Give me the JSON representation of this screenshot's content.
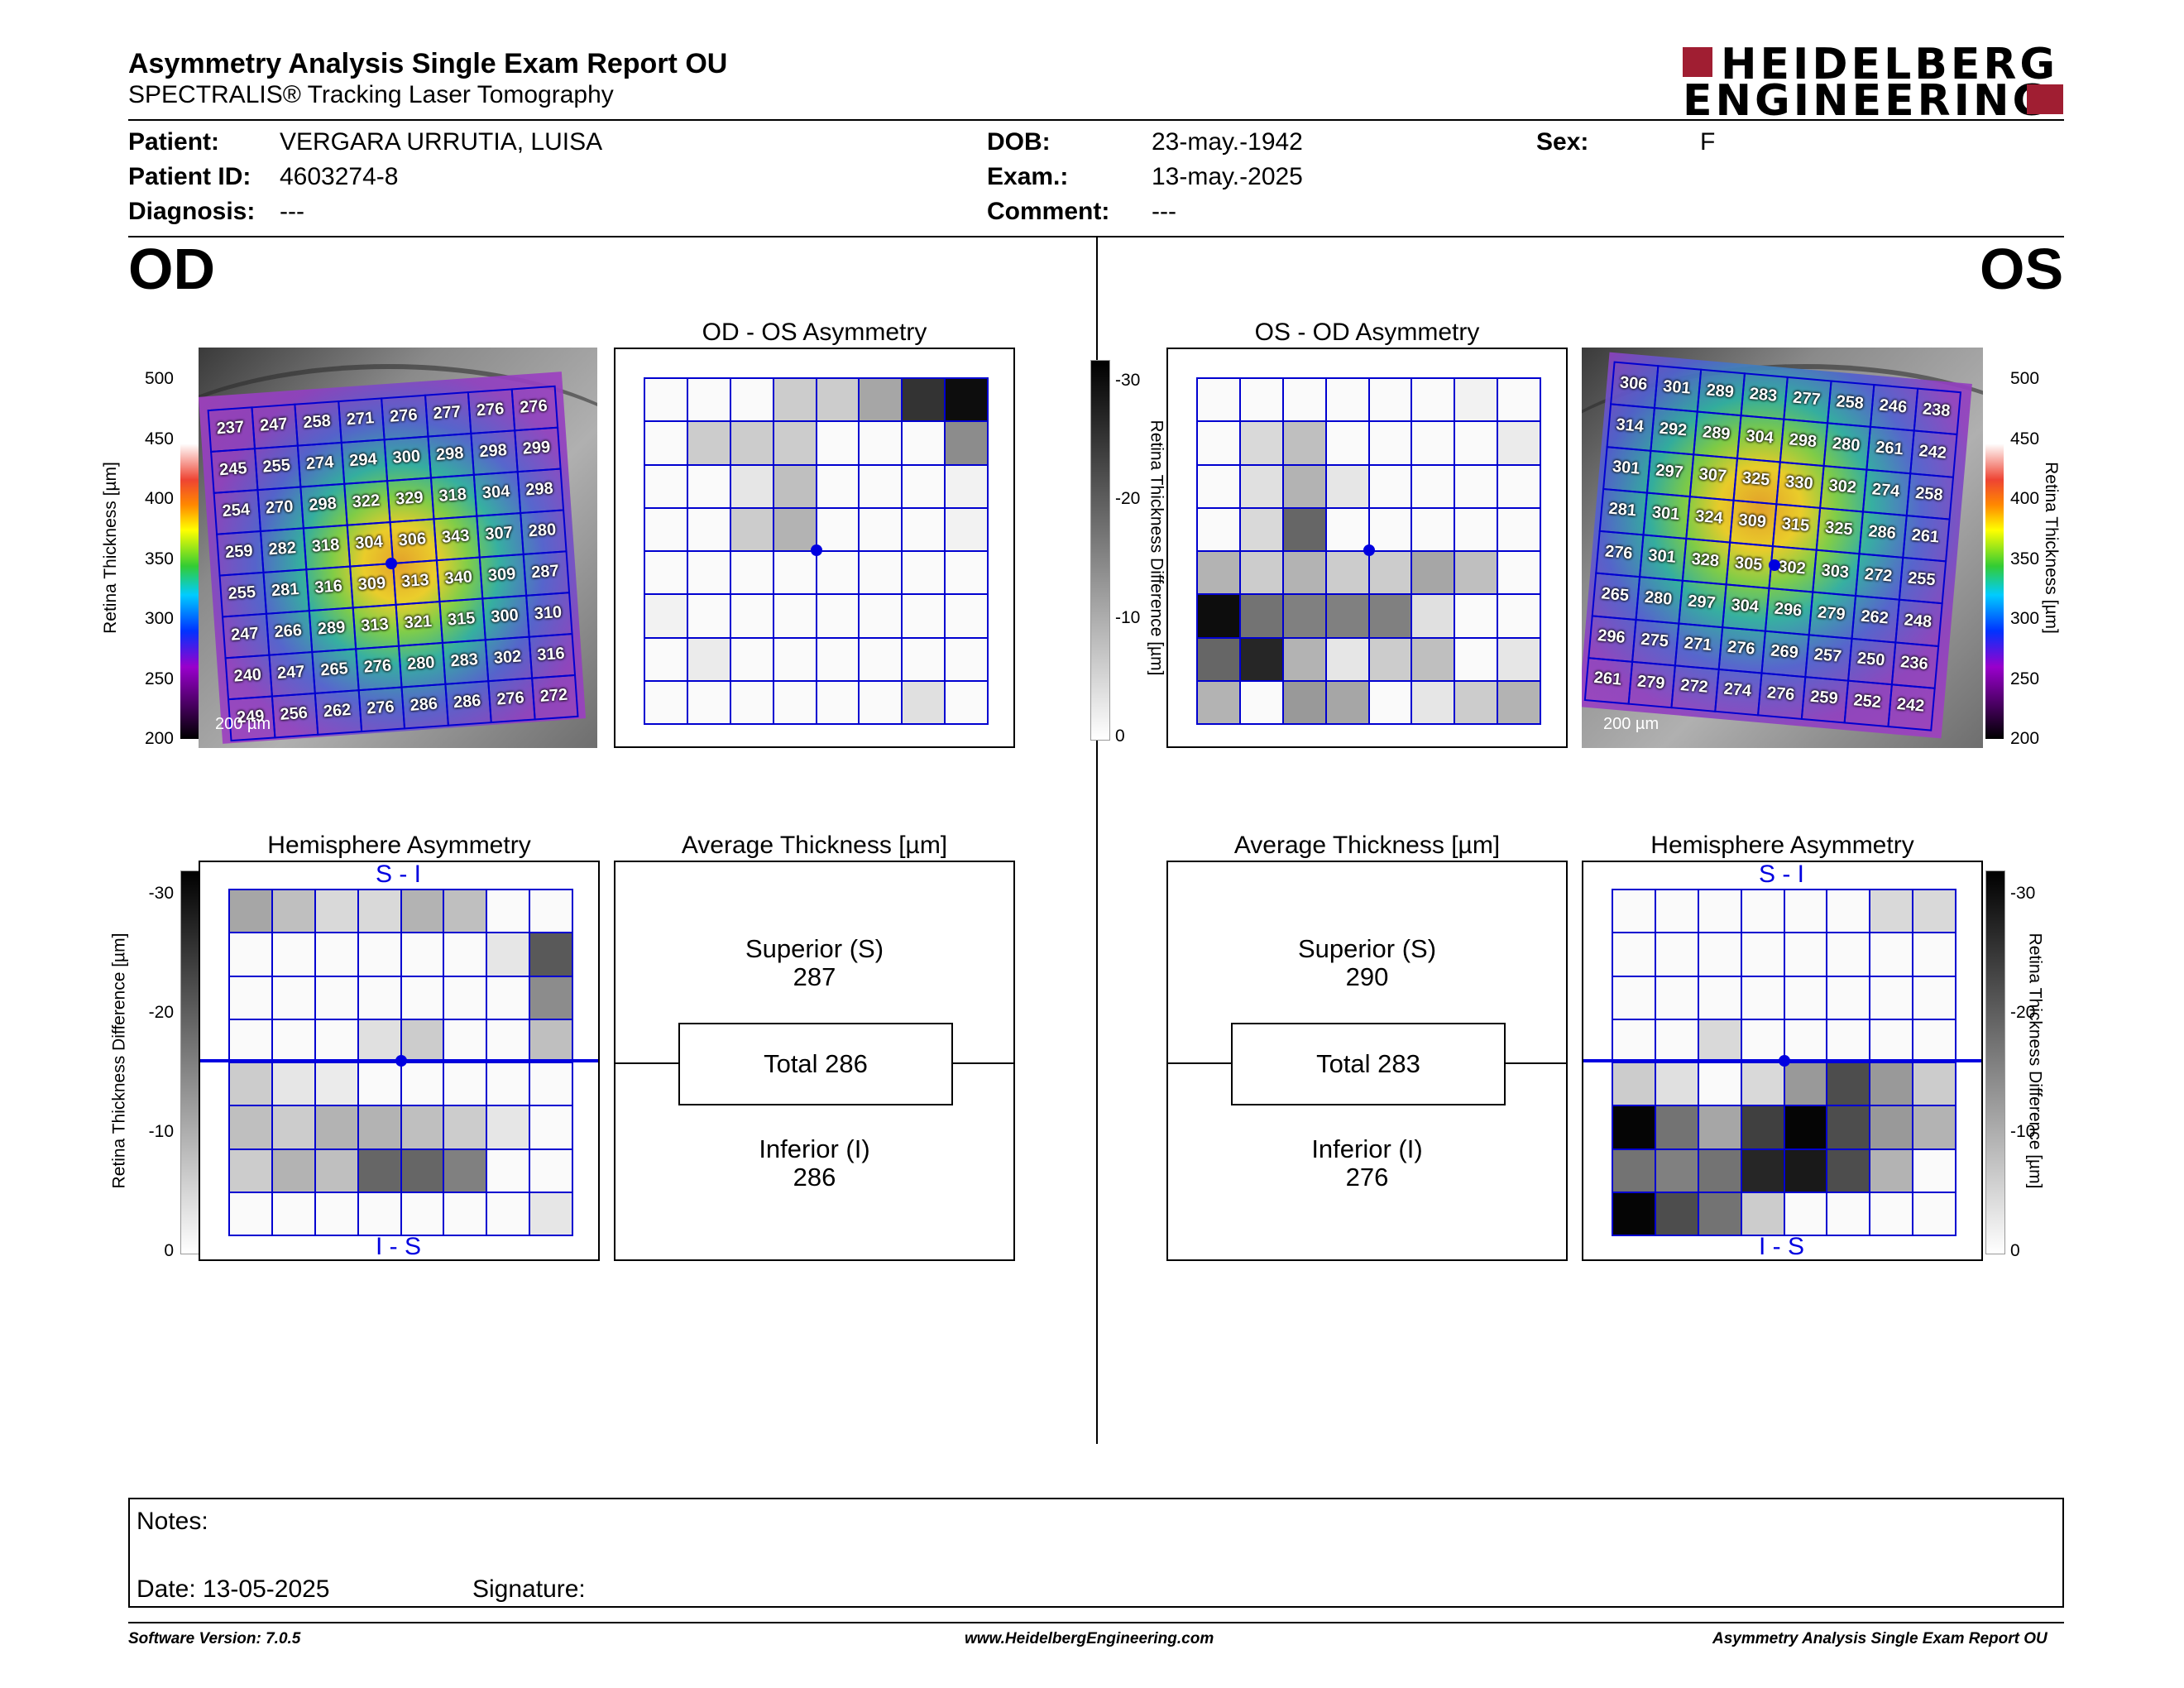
{
  "header": {
    "title": "Asymmetry Analysis Single Exam Report OU",
    "subtitle": "SPECTRALIS® Tracking Laser Tomography",
    "logo_line1": "HEIDELBERG",
    "logo_line2": "ENGINEERING",
    "brand_color": "#a01e32"
  },
  "patient": {
    "patient_label": "Patient:",
    "patient_value": "VERGARA URRUTIA, LUISA",
    "id_label": "Patient ID:",
    "id_value": "4603274-8",
    "diag_label": "Diagnosis:",
    "diag_value": "---",
    "dob_label": "DOB:",
    "dob_value": "23-may.-1942",
    "exam_label": "Exam.:",
    "exam_value": "13-may.-2025",
    "comment_label": "Comment:",
    "comment_value": "---",
    "sex_label": "Sex:",
    "sex_value": "F"
  },
  "od": {
    "eye": "OD",
    "asym_title": "OD - OS Asymmetry",
    "hemi_title": "Hemisphere Asymmetry",
    "avg_title": "Average Thickness [µm]",
    "superior_label": "Superior (S)",
    "superior_value": "287",
    "total_label": "Total 286",
    "inferior_label": "Inferior (I)",
    "inferior_value": "286",
    "scale_label": "200 µm",
    "thickness": [
      [
        237,
        247,
        258,
        271,
        276,
        277,
        276,
        276
      ],
      [
        245,
        255,
        274,
        294,
        300,
        298,
        298,
        299
      ],
      [
        254,
        270,
        298,
        322,
        329,
        318,
        304,
        298
      ],
      [
        259,
        282,
        318,
        304,
        306,
        343,
        307,
        280
      ],
      [
        255,
        281,
        316,
        309,
        313,
        340,
        309,
        287
      ],
      [
        247,
        266,
        289,
        313,
        321,
        315,
        300,
        310
      ],
      [
        240,
        247,
        265,
        276,
        280,
        283,
        302,
        316
      ],
      [
        249,
        256,
        262,
        276,
        286,
        286,
        276,
        272
      ]
    ],
    "asym_gray": [
      [
        0.02,
        0.02,
        0.02,
        0.2,
        0.2,
        0.35,
        0.8,
        0.95
      ],
      [
        0.02,
        0.2,
        0.2,
        0.2,
        0.02,
        0.02,
        0.02,
        0.45
      ],
      [
        0.02,
        0.02,
        0.1,
        0.25,
        0.02,
        0.02,
        0.02,
        0.05
      ],
      [
        0.02,
        0.02,
        0.2,
        0.3,
        0.02,
        0.02,
        0.02,
        0.05
      ],
      [
        0.02,
        0.02,
        0.02,
        0.02,
        0.02,
        0.02,
        0.02,
        0.02
      ],
      [
        0.05,
        0.02,
        0.02,
        0.02,
        0.02,
        0.02,
        0.02,
        0.02
      ],
      [
        0.02,
        0.08,
        0.02,
        0.02,
        0.02,
        0.02,
        0.02,
        0.02
      ],
      [
        0.02,
        0.02,
        0.02,
        0.02,
        0.02,
        0.02,
        0.12,
        0.02
      ]
    ],
    "hemi_gray": [
      [
        0.35,
        0.25,
        0.15,
        0.15,
        0.3,
        0.25,
        0.02,
        0.02
      ],
      [
        0.02,
        0.02,
        0.02,
        0.02,
        0.02,
        0.02,
        0.1,
        0.65
      ],
      [
        0.02,
        0.02,
        0.02,
        0.02,
        0.02,
        0.02,
        0.02,
        0.45
      ],
      [
        0.02,
        0.02,
        0.02,
        0.12,
        0.2,
        0.02,
        0.02,
        0.25
      ],
      [
        0.2,
        0.1,
        0.08,
        0.02,
        0.02,
        0.02,
        0.02,
        0.02
      ],
      [
        0.25,
        0.2,
        0.3,
        0.3,
        0.25,
        0.2,
        0.1,
        0.02
      ],
      [
        0.2,
        0.3,
        0.25,
        0.6,
        0.6,
        0.5,
        0.02,
        0.02
      ],
      [
        0.02,
        0.02,
        0.02,
        0.02,
        0.02,
        0.02,
        0.02,
        0.1
      ]
    ]
  },
  "os": {
    "eye": "OS",
    "asym_title": "OS - OD Asymmetry",
    "hemi_title": "Hemisphere Asymmetry",
    "avg_title": "Average Thickness [µm]",
    "superior_label": "Superior (S)",
    "superior_value": "290",
    "total_label": "Total 283",
    "inferior_label": "Inferior (I)",
    "inferior_value": "276",
    "scale_label": "200 µm",
    "thickness": [
      [
        306,
        301,
        289,
        283,
        277,
        258,
        246,
        238
      ],
      [
        314,
        292,
        289,
        304,
        298,
        280,
        261,
        242
      ],
      [
        301,
        297,
        307,
        325,
        330,
        302,
        274,
        258
      ],
      [
        281,
        301,
        324,
        309,
        315,
        325,
        286,
        261
      ],
      [
        276,
        301,
        328,
        305,
        302,
        303,
        272,
        255
      ],
      [
        265,
        280,
        297,
        304,
        296,
        279,
        262,
        248
      ],
      [
        296,
        275,
        271,
        276,
        269,
        257,
        250,
        236
      ],
      [
        261,
        279,
        272,
        274,
        276,
        259,
        252,
        242
      ]
    ],
    "asym_gray": [
      [
        0.02,
        0.02,
        0.02,
        0.02,
        0.02,
        0.02,
        0.05,
        0.02
      ],
      [
        0.02,
        0.15,
        0.25,
        0.02,
        0.02,
        0.02,
        0.02,
        0.08
      ],
      [
        0.02,
        0.12,
        0.3,
        0.1,
        0.02,
        0.02,
        0.02,
        0.02
      ],
      [
        0.02,
        0.15,
        0.6,
        0.02,
        0.02,
        0.02,
        0.02,
        0.02
      ],
      [
        0.3,
        0.2,
        0.3,
        0.2,
        0.2,
        0.35,
        0.25,
        0.02
      ],
      [
        0.95,
        0.55,
        0.5,
        0.5,
        0.5,
        0.12,
        0.02,
        0.02
      ],
      [
        0.6,
        0.85,
        0.3,
        0.1,
        0.2,
        0.25,
        0.02,
        0.1
      ],
      [
        0.3,
        0.02,
        0.4,
        0.35,
        0.02,
        0.1,
        0.2,
        0.3
      ]
    ],
    "hemi_gray": [
      [
        0.02,
        0.02,
        0.02,
        0.02,
        0.02,
        0.02,
        0.15,
        0.15
      ],
      [
        0.02,
        0.02,
        0.02,
        0.02,
        0.02,
        0.02,
        0.02,
        0.02
      ],
      [
        0.02,
        0.02,
        0.02,
        0.02,
        0.02,
        0.02,
        0.02,
        0.02
      ],
      [
        0.02,
        0.02,
        0.15,
        0.02,
        0.02,
        0.02,
        0.02,
        0.02
      ],
      [
        0.2,
        0.12,
        0.02,
        0.15,
        0.4,
        0.7,
        0.4,
        0.2
      ],
      [
        0.98,
        0.55,
        0.35,
        0.75,
        0.98,
        0.7,
        0.4,
        0.3
      ],
      [
        0.55,
        0.5,
        0.55,
        0.85,
        0.9,
        0.7,
        0.3,
        0.02
      ],
      [
        0.98,
        0.7,
        0.55,
        0.2,
        0.02,
        0.02,
        0.02,
        0.02
      ]
    ]
  },
  "scales": {
    "thickness_ticks": [
      "500",
      "450",
      "400",
      "350",
      "300",
      "250",
      "200"
    ],
    "thickness_axis": "Retina  Thickness [µm]",
    "diff_ticks": [
      "-30",
      "-20",
      "-10",
      "0"
    ],
    "diff_axis": "Retina Thickness Difference [µm]",
    "si_label": "S - I",
    "is_label": "I - S"
  },
  "notes": {
    "notes_label": "Notes:",
    "date_label": "Date: 13-05-2025",
    "signature_label": "Signature:"
  },
  "footer": {
    "version": "Software Version: 7.0.5",
    "website": "www.HeidelbergEngineering.com",
    "report": "Asymmetry Analysis Single Exam Report OU"
  }
}
